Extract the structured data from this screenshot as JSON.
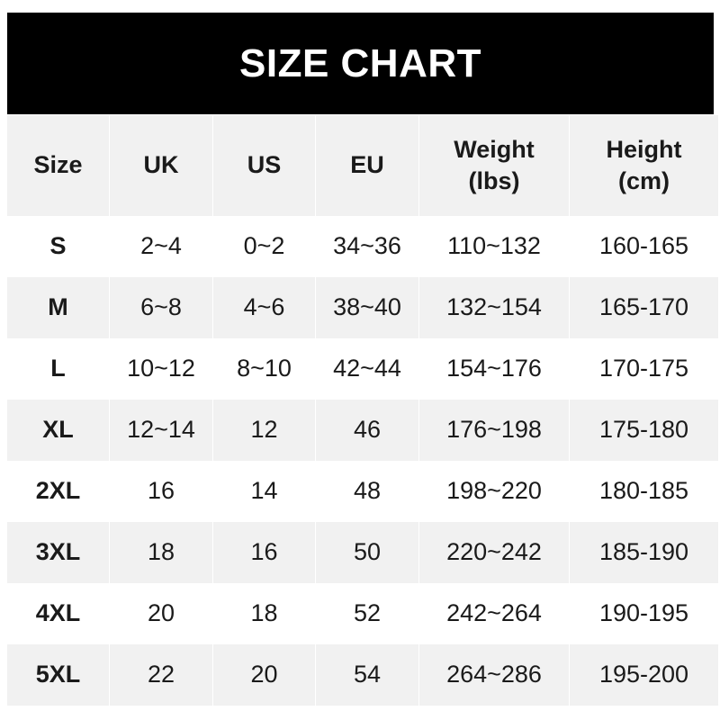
{
  "title": "SIZE CHART",
  "chart_data": {
    "type": "table",
    "title": "SIZE CHART",
    "columns": [
      "Size",
      "UK",
      "US",
      "EU",
      "Weight\n(lbs)",
      "Height\n(cm)"
    ],
    "rows": [
      [
        "S",
        "2~4",
        "0~2",
        "34~36",
        "110~132",
        "160-165"
      ],
      [
        "M",
        "6~8",
        "4~6",
        "38~40",
        "132~154",
        "165-170"
      ],
      [
        "L",
        "10~12",
        "8~10",
        "42~44",
        "154~176",
        "170-175"
      ],
      [
        "XL",
        "12~14",
        "12",
        "46",
        "176~198",
        "175-180"
      ],
      [
        "2XL",
        "16",
        "14",
        "48",
        "198~220",
        "180-185"
      ],
      [
        "3XL",
        "18",
        "16",
        "50",
        "220~242",
        "185-190"
      ],
      [
        "4XL",
        "20",
        "18",
        "52",
        "242~264",
        "190-195"
      ],
      [
        "5XL",
        "22",
        "20",
        "54",
        "264~286",
        "195-200"
      ]
    ]
  },
  "colors": {
    "header_band": "#000000",
    "stripe": "#f1f1f1",
    "text": "#1a1a1a"
  }
}
